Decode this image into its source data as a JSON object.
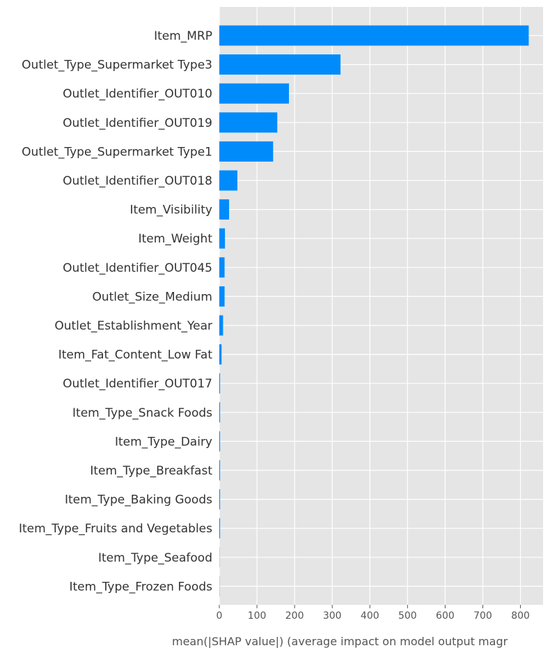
{
  "chart_data": {
    "type": "bar",
    "orientation": "horizontal",
    "categories": [
      "Item_MRP",
      "Outlet_Type_Supermarket Type3",
      "Outlet_Identifier_OUT010",
      "Outlet_Identifier_OUT019",
      "Outlet_Type_Supermarket Type1",
      "Outlet_Identifier_OUT018",
      "Item_Visibility",
      "Item_Weight",
      "Outlet_Identifier_OUT045",
      "Outlet_Size_Medium",
      "Outlet_Establishment_Year",
      "Item_Fat_Content_Low Fat",
      "Outlet_Identifier_OUT017",
      "Item_Type_Snack Foods",
      "Item_Type_Dairy",
      "Item_Type_Breakfast",
      "Item_Type_Baking Goods",
      "Item_Type_Fruits and Vegetables",
      "Item_Type_Seafood",
      "Item_Type_Frozen Foods"
    ],
    "values": [
      822,
      322,
      185,
      154,
      143,
      48,
      26,
      15,
      14,
      14,
      10,
      6,
      2,
      2,
      2,
      2,
      2,
      2,
      0.5,
      0.5
    ],
    "xlim": [
      0,
      860
    ],
    "xticks": [
      0,
      100,
      200,
      300,
      400,
      500,
      600,
      700,
      800
    ],
    "xlabel": "mean(|SHAP value|) (average impact on model output magr",
    "ylabel": "",
    "title": "",
    "grid": true,
    "colors": {
      "bar": "#008bfb",
      "background": "#e5e5e5",
      "grid": "#ffffff"
    }
  }
}
